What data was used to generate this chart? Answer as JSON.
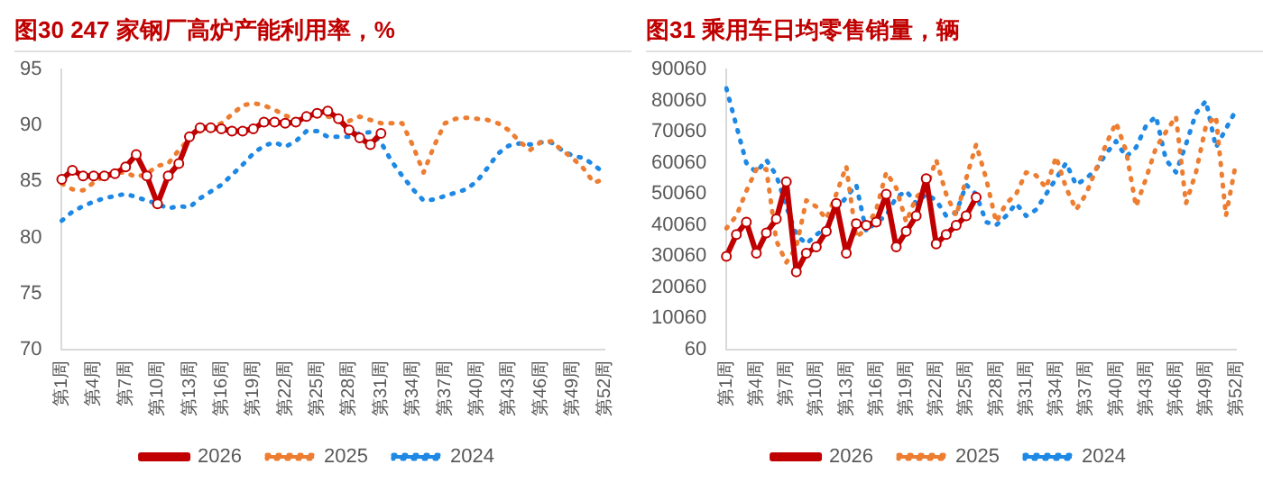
{
  "chart_data": [
    {
      "type": "line",
      "title": "图30  247 家钢厂高炉产能利用率，%",
      "categories": [
        "第1周",
        null,
        null,
        "第4周",
        null,
        null,
        "第7周",
        null,
        null,
        "第10周",
        null,
        null,
        "第13周",
        null,
        null,
        "第16周",
        null,
        null,
        "第19周",
        null,
        null,
        "第22周",
        null,
        null,
        "第25周",
        null,
        null,
        "第28周",
        null,
        null,
        "第31周",
        null,
        null,
        "第34周",
        null,
        null,
        "第37周",
        null,
        null,
        "第40周",
        null,
        null,
        "第43周",
        null,
        null,
        "第46周",
        null,
        null,
        "第49周",
        null,
        null,
        "第52周"
      ],
      "ylim": [
        70,
        95
      ],
      "yticks": [
        70,
        75,
        80,
        85,
        90,
        95
      ],
      "grid": false,
      "legend": "bottom",
      "series": [
        {
          "name": "2026",
          "color": "#c00000",
          "marker": "circle",
          "line_style": "solid",
          "values": [
            85.2,
            86.0,
            85.5,
            85.5,
            85.5,
            85.7,
            86.3,
            87.4,
            85.5,
            83.0,
            85.5,
            86.6,
            89.0,
            89.8,
            89.8,
            89.7,
            89.5,
            89.5,
            89.7,
            90.3,
            90.3,
            90.2,
            90.3,
            90.8,
            91.1,
            91.3,
            90.6,
            89.6,
            88.9,
            88.3,
            89.3,
            null,
            null,
            null,
            null,
            null,
            null,
            null,
            null,
            null,
            null,
            null,
            null,
            null,
            null,
            null,
            null,
            null,
            null,
            null,
            null,
            null
          ]
        },
        {
          "name": "2025",
          "color": "#ed7d31",
          "marker": "none",
          "line_style": "dotted",
          "values": [
            84.8,
            84.3,
            84.2,
            84.9,
            85.5,
            85.8,
            85.8,
            85.4,
            85.7,
            86.4,
            86.6,
            87.8,
            88.8,
            89.5,
            89.8,
            90.2,
            91.0,
            91.8,
            92.0,
            91.8,
            91.4,
            90.9,
            90.5,
            90.6,
            90.9,
            90.8,
            90.6,
            90.4,
            90.8,
            90.5,
            90.2,
            90.2,
            90.2,
            88.2,
            85.8,
            88.2,
            90.2,
            90.6,
            90.7,
            90.6,
            90.5,
            90.2,
            89.6,
            88.6,
            87.8,
            88.5,
            88.6,
            87.8,
            87.1,
            86.2,
            84.9,
            85.2
          ]
        },
        {
          "name": "2024",
          "color": "#1e88e5",
          "marker": "none",
          "line_style": "dotted",
          "values": [
            81.5,
            82.3,
            82.8,
            83.2,
            83.5,
            83.7,
            83.9,
            83.6,
            83.3,
            83.0,
            82.6,
            82.8,
            82.7,
            83.5,
            84.1,
            84.7,
            85.6,
            86.5,
            87.5,
            88.2,
            88.5,
            88.1,
            88.6,
            89.5,
            89.5,
            89.0,
            89.0,
            89.0,
            89.3,
            89.4,
            88.5,
            86.8,
            85.5,
            84.3,
            83.3,
            83.4,
            83.7,
            84.0,
            84.3,
            85.0,
            86.2,
            87.5,
            88.2,
            88.4,
            88.3,
            88.5,
            88.5,
            87.8,
            87.3,
            87.1,
            86.5,
            85.7
          ]
        }
      ]
    },
    {
      "type": "line",
      "title": "图31  乘用车日均零售销量，辆",
      "categories": [
        "第1周",
        null,
        null,
        "第4周",
        null,
        null,
        "第7周",
        null,
        null,
        "第10周",
        null,
        null,
        "第13周",
        null,
        null,
        "第16周",
        null,
        null,
        "第19周",
        null,
        null,
        "第22周",
        null,
        null,
        "第25周",
        null,
        null,
        "第28周",
        null,
        null,
        "第31周",
        null,
        null,
        "第34周",
        null,
        null,
        "第37周",
        null,
        null,
        "第40周",
        null,
        null,
        "第43周",
        null,
        null,
        "第46周",
        null,
        null,
        "第49周",
        null,
        null,
        "第52周"
      ],
      "ylim": [
        60,
        90060
      ],
      "yticks": [
        60,
        10060,
        20060,
        30060,
        40060,
        50060,
        60060,
        70060,
        80060,
        90060
      ],
      "grid": false,
      "legend": "bottom",
      "series": [
        {
          "name": "2026",
          "color": "#c00000",
          "marker": "circle",
          "line_style": "solid",
          "values": [
            30000,
            37000,
            41000,
            31000,
            37500,
            42000,
            54000,
            25000,
            31000,
            33000,
            38000,
            47000,
            31000,
            40500,
            40000,
            41000,
            50000,
            33000,
            38000,
            43000,
            55000,
            34000,
            37000,
            40000,
            43000,
            49000,
            null,
            null,
            null,
            null,
            null,
            null,
            null,
            null,
            null,
            null,
            null,
            null,
            null,
            null,
            null,
            null,
            null,
            null,
            null,
            null,
            null,
            null,
            null,
            null,
            null,
            null
          ]
        },
        {
          "name": "2025",
          "color": "#ed7d31",
          "marker": "none",
          "line_style": "dotted",
          "values": [
            39000,
            43000,
            51000,
            58000,
            58000,
            35000,
            28000,
            33000,
            48000,
            46000,
            42000,
            50000,
            59000,
            36000,
            39000,
            45000,
            57000,
            52000,
            41000,
            49000,
            52000,
            61000,
            50000,
            43000,
            55000,
            66000,
            55000,
            41000,
            47000,
            50000,
            57000,
            56000,
            52000,
            62000,
            52000,
            45000,
            50000,
            58000,
            66000,
            73000,
            64000,
            46000,
            55000,
            65000,
            70000,
            75000,
            47000,
            57000,
            72000,
            75000,
            43000,
            60000
          ]
        },
        {
          "name": "2024",
          "color": "#1e88e5",
          "marker": "none",
          "line_style": "dotted",
          "values": [
            84000,
            72000,
            60000,
            57000,
            61000,
            56000,
            46000,
            37000,
            34000,
            37000,
            39000,
            45000,
            49000,
            53000,
            38000,
            41000,
            43000,
            49000,
            51000,
            47000,
            50000,
            48000,
            43000,
            44000,
            53000,
            50000,
            41000,
            40000,
            43000,
            47000,
            43000,
            45000,
            50000,
            55000,
            60000,
            53000,
            55000,
            58000,
            63000,
            67000,
            62000,
            65000,
            72000,
            75000,
            61000,
            57000,
            66000,
            76000,
            80000,
            65000,
            71000,
            77000
          ]
        }
      ]
    }
  ]
}
